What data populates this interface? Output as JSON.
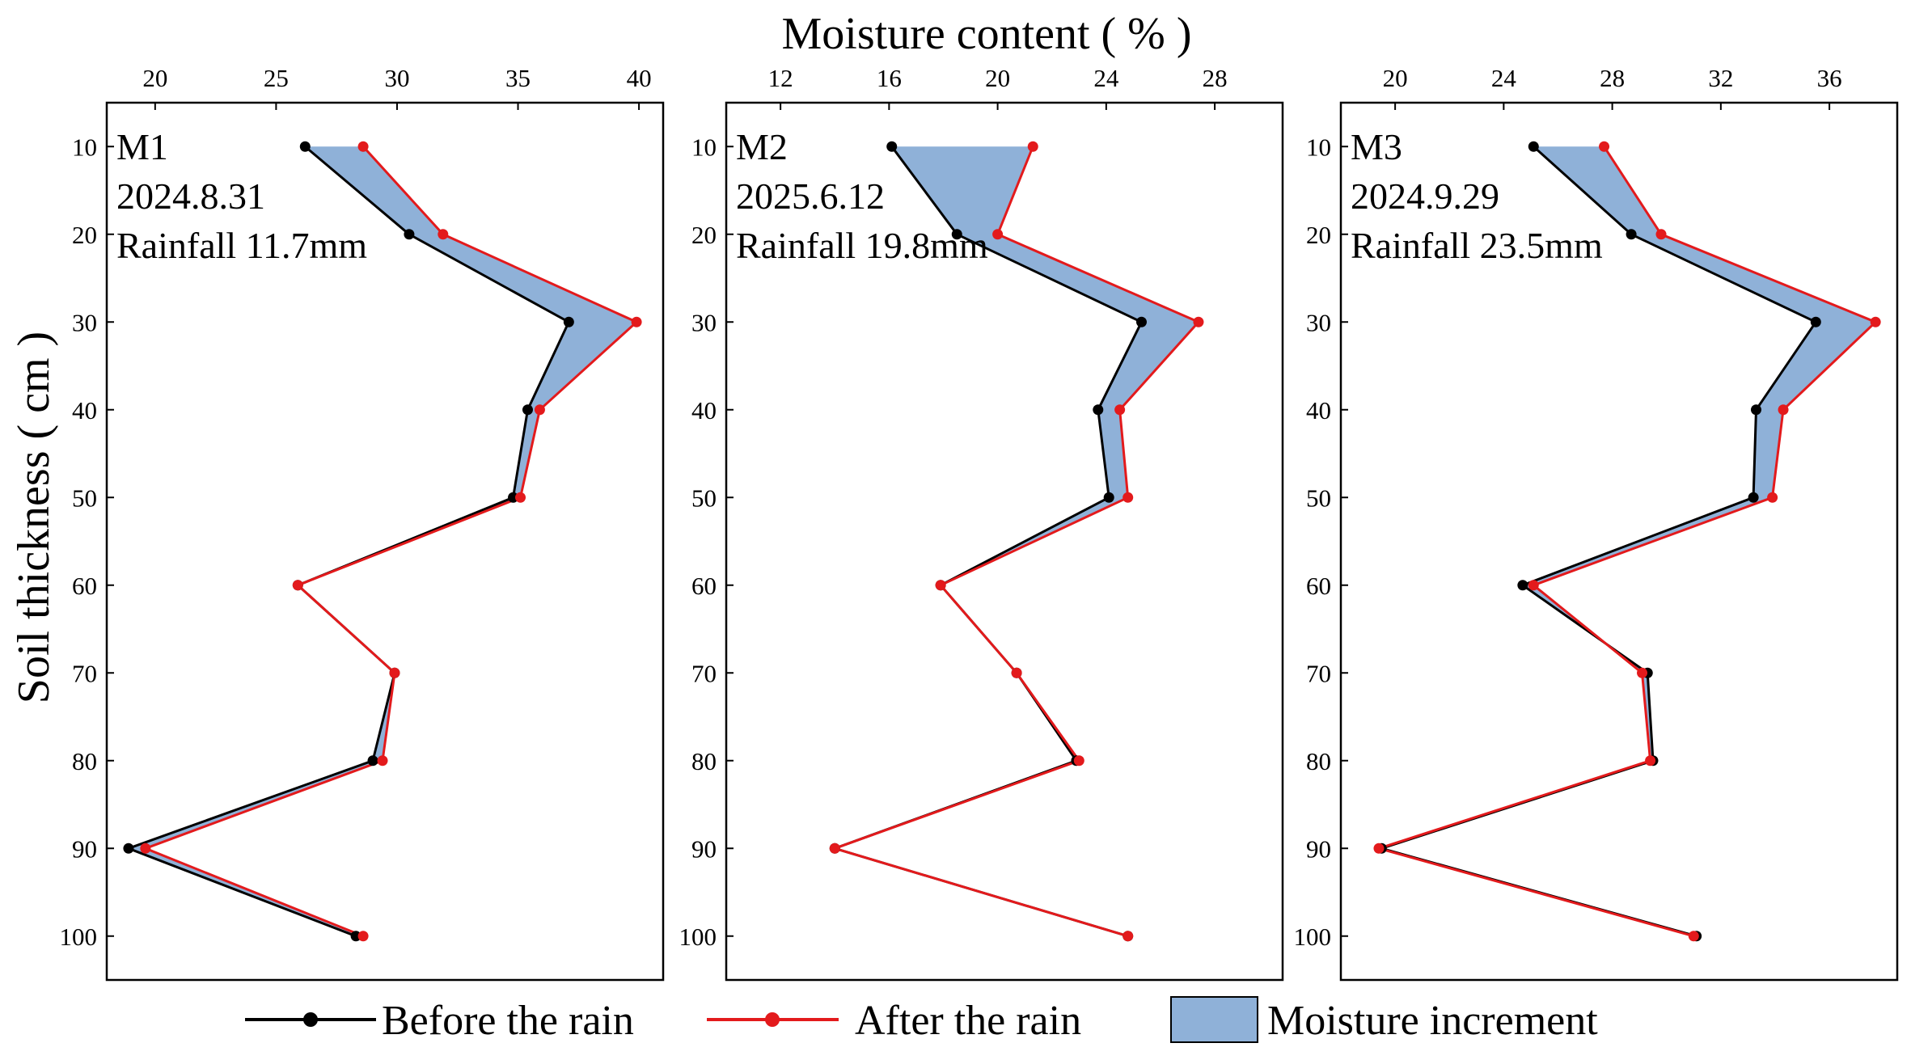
{
  "chart_data": {
    "type": "line",
    "title": "",
    "xlabel": "Moisture content ( % )",
    "ylabel": "Soil thickness ( cm )",
    "y_ticks": [
      10,
      20,
      30,
      40,
      50,
      60,
      70,
      80,
      90,
      100
    ],
    "y_range": [
      5,
      105
    ],
    "legend": {
      "placement": "bottom",
      "entries": [
        "Before the rain",
        "After the rain",
        "Moisture increment"
      ]
    },
    "colors": {
      "before": "#000000",
      "after": "#e31a1c",
      "fill": "#8fb1d8"
    },
    "panels": [
      {
        "name": "M1",
        "date": "2024.8.31",
        "rainfall": "Rainfall 11.7mm",
        "x_range": [
          18,
          41
        ],
        "x_ticks": [
          20,
          25,
          30,
          35,
          40
        ],
        "depth": [
          10,
          20,
          30,
          40,
          50,
          60,
          70,
          80,
          90,
          100
        ],
        "before": [
          26.2,
          30.5,
          37.1,
          35.4,
          34.8,
          25.9,
          29.9,
          29.0,
          18.9,
          28.3
        ],
        "after": [
          28.6,
          31.9,
          39.9,
          35.9,
          35.1,
          25.9,
          29.9,
          29.4,
          19.6,
          28.6
        ]
      },
      {
        "name": "M2",
        "date": "2025.6.12",
        "rainfall": "Rainfall 19.8mm",
        "x_range": [
          10,
          30.5
        ],
        "x_ticks": [
          12,
          16,
          20,
          24,
          28
        ],
        "depth": [
          10,
          20,
          30,
          40,
          50,
          60,
          70,
          80,
          90,
          100
        ],
        "before": [
          16.1,
          18.5,
          25.3,
          23.7,
          24.1,
          17.9,
          20.7,
          22.9,
          14.0,
          24.8
        ],
        "after": [
          21.3,
          20.0,
          27.4,
          24.5,
          24.8,
          17.9,
          20.7,
          23.0,
          14.0,
          24.8
        ]
      },
      {
        "name": "M3",
        "date": "2024.9.29",
        "rainfall": "Rainfall 23.5mm",
        "x_range": [
          18,
          38.5
        ],
        "x_ticks": [
          20,
          24,
          28,
          32,
          36
        ],
        "depth": [
          10,
          20,
          30,
          40,
          50,
          60,
          70,
          80,
          90,
          100
        ],
        "before": [
          25.1,
          28.7,
          35.5,
          33.3,
          33.2,
          24.7,
          29.3,
          29.5,
          19.5,
          31.1
        ],
        "after": [
          27.7,
          29.8,
          37.7,
          34.3,
          33.9,
          25.1,
          29.1,
          29.4,
          19.4,
          31.0
        ]
      }
    ]
  }
}
